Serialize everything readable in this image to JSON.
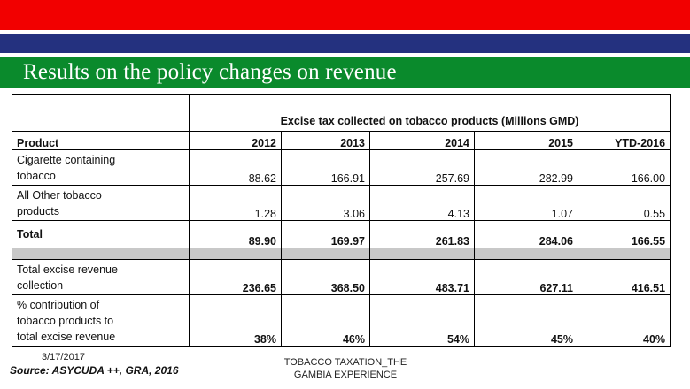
{
  "slide": {
    "title": "Results on the policy changes on revenue"
  },
  "table": {
    "header_caption": "Excise tax collected on tobacco products (Millions GMD)",
    "product_header": "Product",
    "years": [
      "2012",
      "2013",
      "2014",
      "2015",
      "YTD-2016"
    ],
    "rows": [
      {
        "label_lines": [
          "Cigarette containing",
          "tobacco"
        ],
        "values": [
          "88.62",
          "166.91",
          "257.69",
          "282.99",
          "166.00"
        ],
        "bold": false
      },
      {
        "label_lines": [
          "All Other tobacco",
          "products"
        ],
        "values": [
          "1.28",
          "3.06",
          "4.13",
          "1.07",
          "0.55"
        ],
        "bold": false
      },
      {
        "label_lines": [
          "Total"
        ],
        "values": [
          "89.90",
          "169.97",
          "261.83",
          "284.06",
          "166.55"
        ],
        "bold": true
      },
      {
        "label_lines": [
          "Total excise revenue",
          "collection"
        ],
        "values": [
          "236.65",
          "368.50",
          "483.71",
          "627.11",
          "416.51"
        ],
        "bold": true
      },
      {
        "label_lines": [
          "% contribution of",
          "tobacco products to",
          "total excise revenue"
        ],
        "values": [
          "38%",
          "46%",
          "54%",
          "45%",
          "40%"
        ],
        "bold": true
      }
    ]
  },
  "footer": {
    "date": "3/17/2017",
    "source": "Source: ASYCUDA ++, GRA, 2016",
    "center_line1": "TOBACCO TAXATION_THE",
    "center_line2": "GAMBIA EXPERIENCE"
  },
  "colors": {
    "red_band": "#f20000",
    "blue_band": "#24317f",
    "green_band": "#0a8a2c",
    "separator_row": "#c8c8c8"
  }
}
